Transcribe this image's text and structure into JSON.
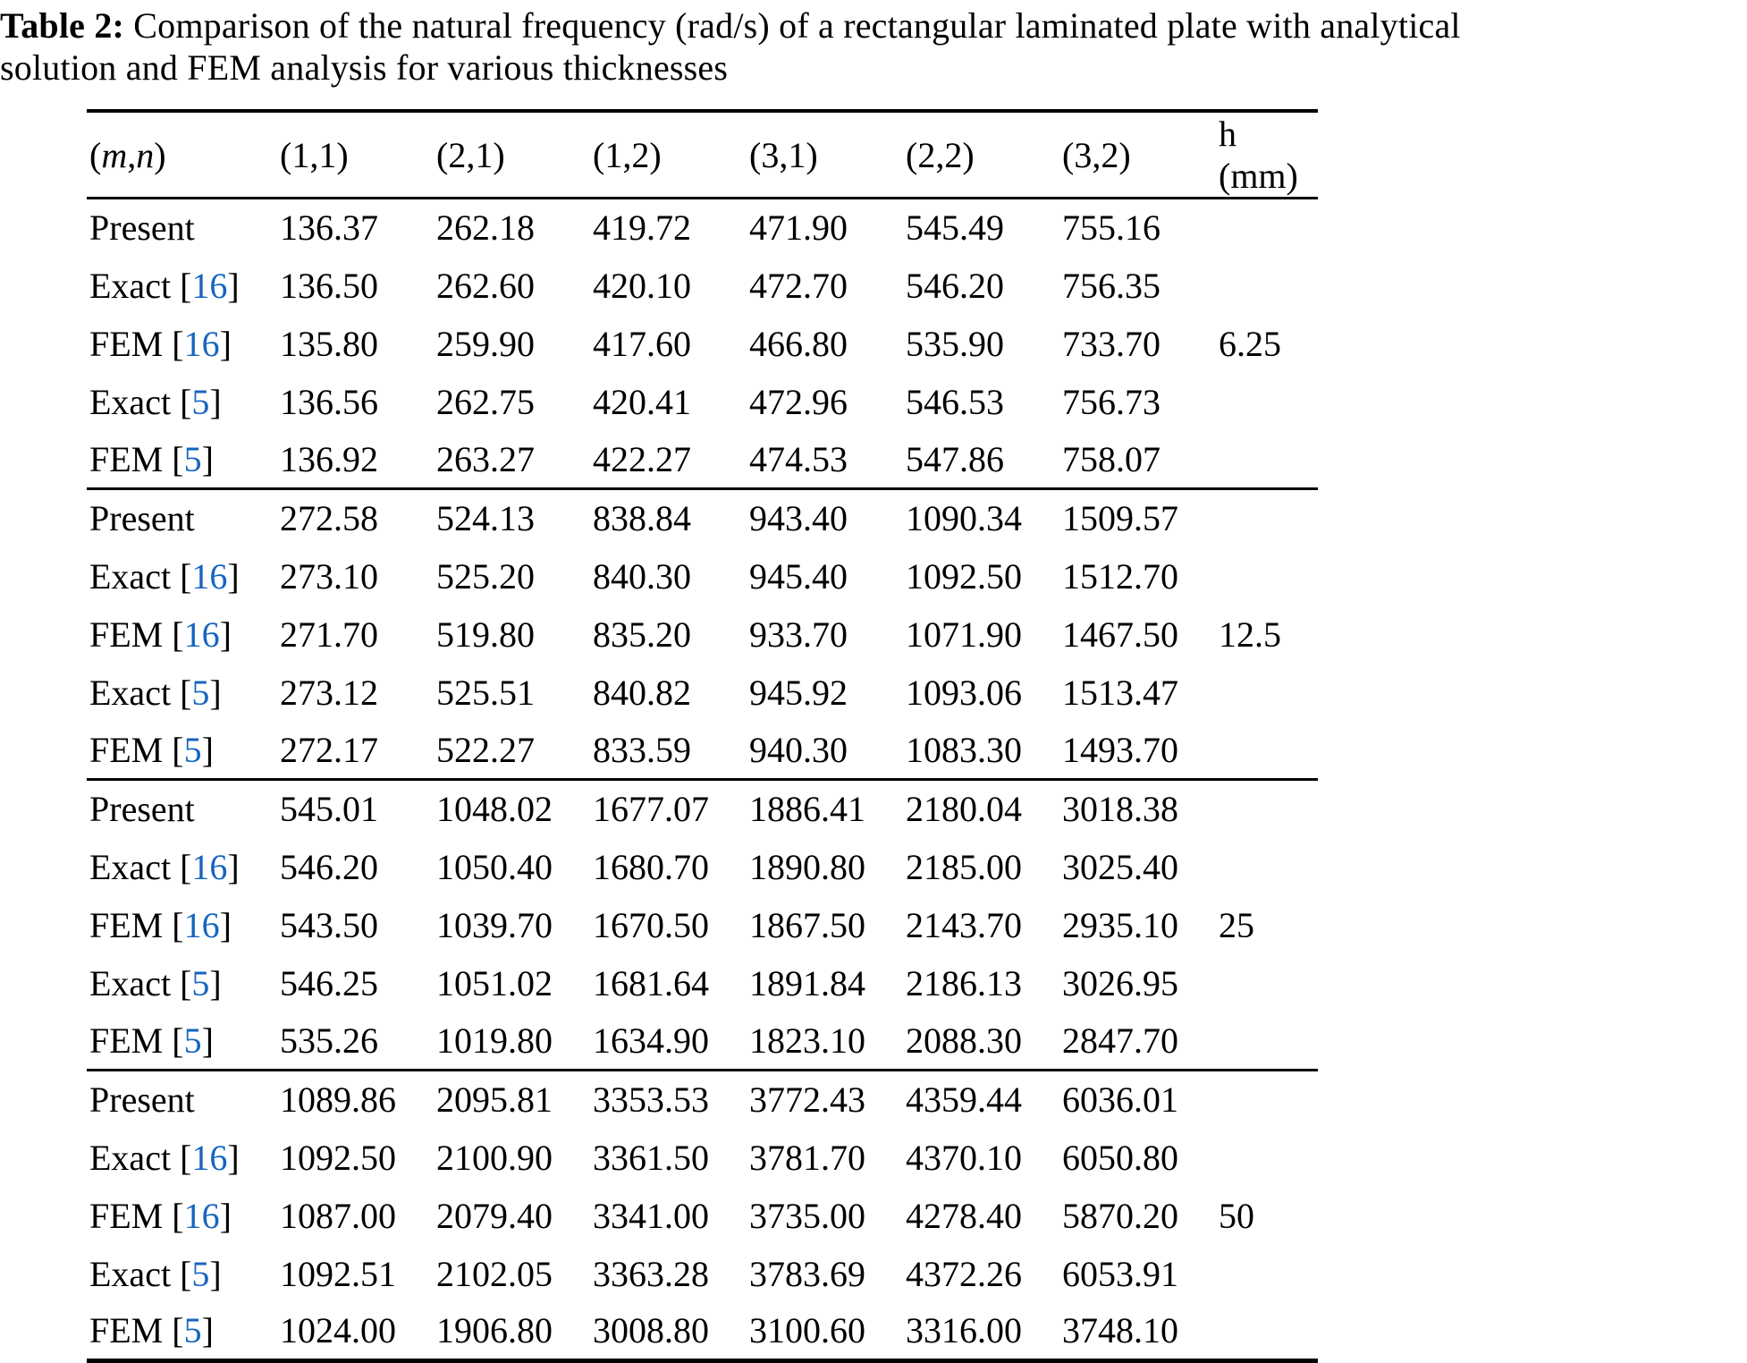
{
  "page": {
    "background": "#ffffff",
    "text_color": "#000000",
    "link_color": "#1565c0"
  },
  "caption": {
    "label": "Table 2:",
    "line1": "Comparison of the natural frequency (rad/s) of a rectangular laminated plate with analytical",
    "line2": "solution and FEM analysis for various thicknesses"
  },
  "table": {
    "columns": [
      {
        "label": "(m,n)",
        "math": true
      },
      {
        "label": "(1,1)",
        "math": false
      },
      {
        "label": "(2,1)",
        "math": false
      },
      {
        "label": "(1,2)",
        "math": false
      },
      {
        "label": "(3,1)",
        "math": false
      },
      {
        "label": "(2,2)",
        "math": false
      },
      {
        "label": "(3,2)",
        "math": false
      },
      {
        "label": "h (mm)",
        "math": false
      }
    ],
    "groups": [
      {
        "h_mm": "6.25",
        "rows": [
          {
            "method": "Present",
            "ref": null,
            "values": [
              "136.37",
              "262.18",
              "419.72",
              "471.90",
              "545.49",
              "755.16"
            ]
          },
          {
            "method": "Exact",
            "ref": "16",
            "values": [
              "136.50",
              "262.60",
              "420.10",
              "472.70",
              "546.20",
              "756.35"
            ]
          },
          {
            "method": "FEM",
            "ref": "16",
            "values": [
              "135.80",
              "259.90",
              "417.60",
              "466.80",
              "535.90",
              "733.70"
            ]
          },
          {
            "method": "Exact",
            "ref": "5",
            "values": [
              "136.56",
              "262.75",
              "420.41",
              "472.96",
              "546.53",
              "756.73"
            ]
          },
          {
            "method": "FEM",
            "ref": "5",
            "values": [
              "136.92",
              "263.27",
              "422.27",
              "474.53",
              "547.86",
              "758.07"
            ]
          }
        ]
      },
      {
        "h_mm": "12.5",
        "rows": [
          {
            "method": "Present",
            "ref": null,
            "values": [
              "272.58",
              "524.13",
              "838.84",
              "943.40",
              "1090.34",
              "1509.57"
            ]
          },
          {
            "method": "Exact",
            "ref": "16",
            "values": [
              "273.10",
              "525.20",
              "840.30",
              "945.40",
              "1092.50",
              "1512.70"
            ]
          },
          {
            "method": "FEM",
            "ref": "16",
            "values": [
              "271.70",
              "519.80",
              "835.20",
              "933.70",
              "1071.90",
              "1467.50"
            ]
          },
          {
            "method": "Exact",
            "ref": "5",
            "values": [
              "273.12",
              "525.51",
              "840.82",
              "945.92",
              "1093.06",
              "1513.47"
            ]
          },
          {
            "method": "FEM",
            "ref": "5",
            "values": [
              "272.17",
              "522.27",
              "833.59",
              "940.30",
              "1083.30",
              "1493.70"
            ]
          }
        ]
      },
      {
        "h_mm": "25",
        "rows": [
          {
            "method": "Present",
            "ref": null,
            "values": [
              "545.01",
              "1048.02",
              "1677.07",
              "1886.41",
              "2180.04",
              "3018.38"
            ]
          },
          {
            "method": "Exact",
            "ref": "16",
            "values": [
              "546.20",
              "1050.40",
              "1680.70",
              "1890.80",
              "2185.00",
              "3025.40"
            ]
          },
          {
            "method": "FEM",
            "ref": "16",
            "values": [
              "543.50",
              "1039.70",
              "1670.50",
              "1867.50",
              "2143.70",
              "2935.10"
            ]
          },
          {
            "method": "Exact",
            "ref": "5",
            "values": [
              "546.25",
              "1051.02",
              "1681.64",
              "1891.84",
              "2186.13",
              "3026.95"
            ]
          },
          {
            "method": "FEM",
            "ref": "5",
            "values": [
              "535.26",
              "1019.80",
              "1634.90",
              "1823.10",
              "2088.30",
              "2847.70"
            ]
          }
        ]
      },
      {
        "h_mm": "50",
        "rows": [
          {
            "method": "Present",
            "ref": null,
            "values": [
              "1089.86",
              "2095.81",
              "3353.53",
              "3772.43",
              "4359.44",
              "6036.01"
            ]
          },
          {
            "method": "Exact",
            "ref": "16",
            "values": [
              "1092.50",
              "2100.90",
              "3361.50",
              "3781.70",
              "4370.10",
              "6050.80"
            ]
          },
          {
            "method": "FEM",
            "ref": "16",
            "values": [
              "1087.00",
              "2079.40",
              "3341.00",
              "3735.00",
              "4278.40",
              "5870.20"
            ]
          },
          {
            "method": "Exact",
            "ref": "5",
            "values": [
              "1092.51",
              "2102.05",
              "3363.28",
              "3783.69",
              "4372.26",
              "6053.91"
            ]
          },
          {
            "method": "FEM",
            "ref": "5",
            "values": [
              "1024.00",
              "1906.80",
              "3008.80",
              "3100.60",
              "3316.00",
              "3748.10"
            ]
          }
        ]
      }
    ]
  }
}
